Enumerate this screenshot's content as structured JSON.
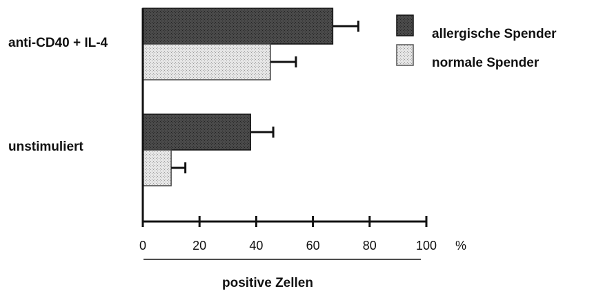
{
  "chart_data": {
    "type": "bar",
    "orientation": "horizontal",
    "categories": [
      "anti-CD40 + IL-4",
      "unstimuliert"
    ],
    "series": [
      {
        "name": "allergische Spender",
        "values": [
          67,
          38
        ],
        "errors": [
          9,
          8
        ],
        "color": "#3a3a3a",
        "pattern": "dense-dark"
      },
      {
        "name": "normale Spender",
        "values": [
          45,
          10
        ],
        "errors": [
          9,
          5
        ],
        "color": "#d4d4d4",
        "pattern": "light-dotted"
      }
    ],
    "xlim": [
      0,
      100
    ],
    "xticks": [
      "0",
      "20",
      "40",
      "60",
      "80",
      "100"
    ],
    "xunit": "%",
    "xlabel": "positive Zellen",
    "title": "",
    "legend_position": "top-right",
    "grid": false
  }
}
